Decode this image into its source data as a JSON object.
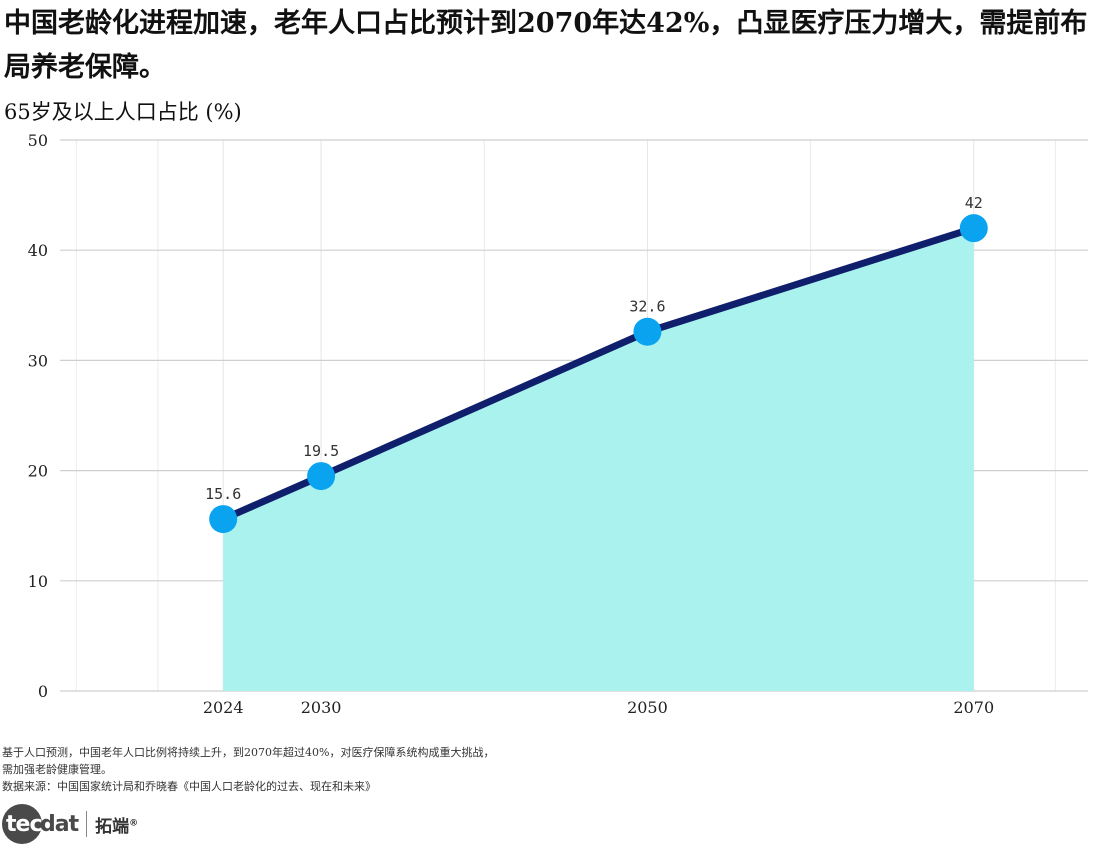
{
  "title": "中国老龄化进程加速，老年人口占比预计到2070年达42%，凸显医疗压力增大，需提前布局养老保障。",
  "chart_data": {
    "type": "area",
    "ylabel": "65岁及以上人口占比 (%)",
    "xlabel": "",
    "x": [
      2024,
      2030,
      2050,
      2070
    ],
    "values": [
      15.6,
      19.5,
      32.6,
      42
    ],
    "data_labels": [
      "15.6",
      "19.5",
      "32.6",
      "42"
    ],
    "x_ticks": [
      "2024",
      "2030",
      "2050",
      "2070"
    ],
    "y_ticks": [
      "0",
      "10",
      "20",
      "30",
      "40",
      "50"
    ],
    "ylim": [
      0,
      50
    ],
    "xlim": [
      2014,
      2077
    ],
    "grid": true,
    "colors": {
      "line": "#0f1f6b",
      "fill": "#aaf2ee",
      "point": "#0aa3f0",
      "grid": "#cfcfcf"
    }
  },
  "footnotes": [
    "基于人口预测，中国老年人口比例将持续上升，到2070年超过40%，对医疗保障系统构成重大挑战，",
    "需加强老龄健康管理。",
    "数据来源：中国国家统计局和乔晓春《中国人口老龄化的过去、现在和未来》"
  ],
  "logo": {
    "circle_text": "tec",
    "rest_text": "dat",
    "cn_text": "拓端",
    "reg": "®"
  }
}
